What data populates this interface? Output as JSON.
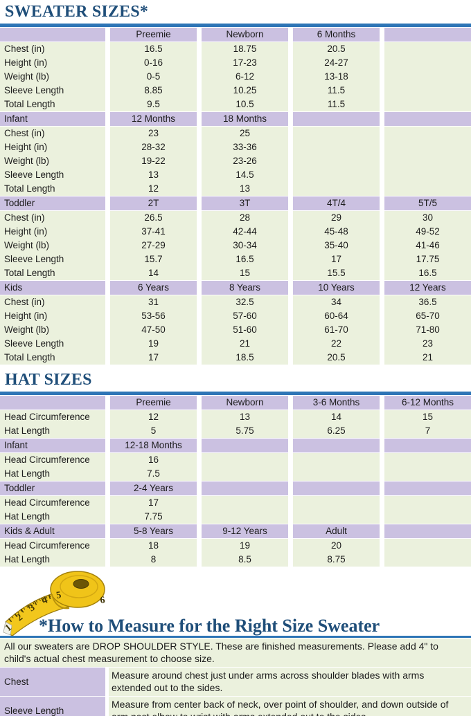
{
  "page": {
    "accent_blue": "#2e75b6",
    "heading_color": "#1f4e79",
    "header_row_color": "#cbc1e1",
    "data_row_color": "#ebf1dd"
  },
  "sweater": {
    "title": "SWEATER SIZES*",
    "sections": [
      {
        "header": [
          "",
          "Preemie",
          "Newborn",
          "6 Months",
          ""
        ],
        "rows": [
          [
            "Chest (in)",
            "16.5",
            "18.75",
            "20.5",
            ""
          ],
          [
            "Height (in)",
            "0-16",
            "17-23",
            "24-27",
            ""
          ],
          [
            "Weight (lb)",
            "0-5",
            "6-12",
            "13-18",
            ""
          ],
          [
            "Sleeve Length",
            "8.85",
            "10.25",
            "11.5",
            ""
          ],
          [
            "Total Length",
            "9.5",
            "10.5",
            "11.5",
            ""
          ]
        ]
      },
      {
        "header": [
          "Infant",
          "12 Months",
          "18 Months",
          "",
          ""
        ],
        "rows": [
          [
            "Chest (in)",
            "23",
            "25",
            "",
            ""
          ],
          [
            "Height (in)",
            "28-32",
            "33-36",
            "",
            ""
          ],
          [
            "Weight (lb)",
            "19-22",
            "23-26",
            "",
            ""
          ],
          [
            "Sleeve Length",
            "13",
            "14.5",
            "",
            ""
          ],
          [
            "Total Length",
            "12",
            "13",
            "",
            ""
          ]
        ]
      },
      {
        "header": [
          "Toddler",
          "2T",
          "3T",
          "4T/4",
          "5T/5"
        ],
        "rows": [
          [
            "Chest (in)",
            "26.5",
            "28",
            "29",
            "30"
          ],
          [
            "Height (in)",
            "37-41",
            "42-44",
            "45-48",
            "49-52"
          ],
          [
            "Weight (lb)",
            "27-29",
            "30-34",
            "35-40",
            "41-46"
          ],
          [
            "Sleeve Length",
            "15.7",
            "16.5",
            "17",
            "17.75"
          ],
          [
            "Total Length",
            "14",
            "15",
            "15.5",
            "16.5"
          ]
        ]
      },
      {
        "header": [
          "Kids",
          "6 Years",
          "8 Years",
          "10 Years",
          "12 Years"
        ],
        "rows": [
          [
            "Chest (in)",
            "31",
            "32.5",
            "34",
            "36.5"
          ],
          [
            "Height (in)",
            "53-56",
            "57-60",
            "60-64",
            "65-70"
          ],
          [
            "Weight (lb)",
            "47-50",
            "51-60",
            "61-70",
            "71-80"
          ],
          [
            "Sleeve Length",
            "19",
            "21",
            "22",
            "23"
          ],
          [
            "Total Length",
            "17",
            "18.5",
            "20.5",
            "21"
          ]
        ]
      }
    ]
  },
  "hat": {
    "title": "HAT SIZES",
    "sections": [
      {
        "header": [
          "",
          "Preemie",
          "Newborn",
          "3-6 Months",
          "6-12 Months"
        ],
        "rows": [
          [
            "Head Circumference",
            "12",
            "13",
            "14",
            "15"
          ],
          [
            "Hat Length",
            "5",
            "5.75",
            "6.25",
            "7"
          ]
        ]
      },
      {
        "header": [
          "Infant",
          "12-18 Months",
          "",
          "",
          ""
        ],
        "rows": [
          [
            "Head Circumference",
            "16",
            "",
            "",
            ""
          ],
          [
            "Hat Length",
            "7.5",
            "",
            "",
            ""
          ]
        ]
      },
      {
        "header": [
          "Toddler",
          "2-4 Years",
          "",
          "",
          ""
        ],
        "rows": [
          [
            "Head Circumference",
            "17",
            "",
            "",
            ""
          ],
          [
            "Hat Length",
            "7.75",
            "",
            "",
            ""
          ]
        ]
      },
      {
        "header": [
          "Kids & Adult",
          "5-8 Years",
          "9-12 Years",
          "Adult",
          ""
        ],
        "rows": [
          [
            "Head Circumference",
            "18",
            "19",
            "20",
            ""
          ],
          [
            "Hat Length",
            "8",
            "8.5",
            "8.75",
            ""
          ]
        ]
      }
    ]
  },
  "measure": {
    "title": "*How to Measure for the Right Size Sweater",
    "note": "All our sweaters are DROP SHOULDER STYLE.  These are finished measurements.  Please add 4\" to child's actual chest measurement to choose size.",
    "tape_numbers": [
      "1",
      "2",
      "3",
      "4",
      "5",
      "6"
    ],
    "rows": [
      {
        "label": "Chest",
        "text": "Measure around chest just under arms across shoulder blades with arms extended out to the sides."
      },
      {
        "label": "Sleeve Length",
        "text": "Measure from center back of neck, over point of shoulder, and down outside of arm past elbow to wrist with arms extended out to the sides."
      }
    ]
  }
}
